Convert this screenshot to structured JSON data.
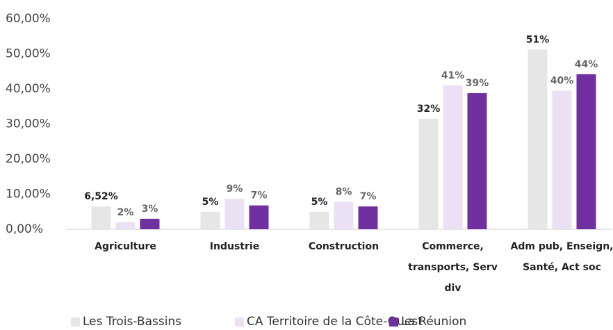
{
  "chart_data": {
    "type": "bar",
    "categories": [
      "Agriculture",
      "Industrie",
      "Construction",
      "Commerce, transports, Serv div",
      "Adm pub, Enseign, Santé, Act soc"
    ],
    "series": [
      {
        "name": "Les Trois-Bassins",
        "color": "#e6e6e6",
        "values": [
          6.52,
          5,
          5,
          31.5,
          51.2
        ],
        "value_labels": [
          "6,52%",
          "5%",
          "5%",
          "32%",
          "51%"
        ]
      },
      {
        "name": "CA Territoire de la Côte-Ouest",
        "color": "#ece0f5",
        "values": [
          2,
          8.7,
          7.8,
          41,
          39.5
        ],
        "value_labels": [
          "2%",
          "9%",
          "8%",
          "41%",
          "40%"
        ]
      },
      {
        "name": "La Réunion",
        "color": "#7030a0",
        "values": [
          3,
          6.8,
          6.5,
          38.8,
          44.2
        ],
        "value_labels": [
          "3%",
          "7%",
          "7%",
          "39%",
          "44%"
        ]
      }
    ],
    "ylim": [
      0,
      60
    ],
    "yticks": [
      {
        "value": 0,
        "label": "0,00%"
      },
      {
        "value": 10,
        "label": "10,00%"
      },
      {
        "value": 20,
        "label": "20,00%"
      },
      {
        "value": 30,
        "label": "30,00%"
      },
      {
        "value": 40,
        "label": "40,00%"
      },
      {
        "value": 50,
        "label": "50,00%"
      },
      {
        "value": 60,
        "label": "60,00%"
      }
    ]
  }
}
